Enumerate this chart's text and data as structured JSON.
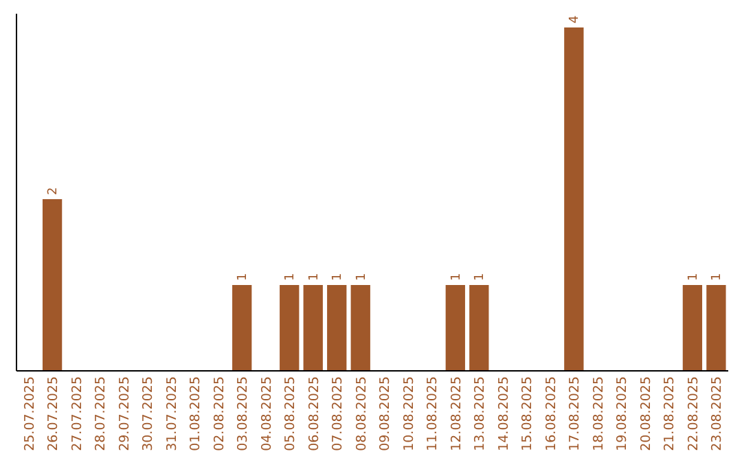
{
  "chart_data": {
    "type": "bar",
    "categories": [
      "25.07.2025",
      "26.07.2025",
      "27.07.2025",
      "28.07.2025",
      "29.07.2025",
      "30.07.2025",
      "31.07.2025",
      "01.08.2025",
      "02.08.2025",
      "03.08.2025",
      "04.08.2025",
      "05.08.2025",
      "06.08.2025",
      "07.08.2025",
      "08.08.2025",
      "09.08.2025",
      "10.08.2025",
      "11.08.2025",
      "12.08.2025",
      "13.08.2025",
      "14.08.2025",
      "15.08.2025",
      "16.08.2025",
      "17.08.2025",
      "18.08.2025",
      "19.08.2025",
      "20.08.2025",
      "21.08.2025",
      "22.08.2025",
      "23.08.2025"
    ],
    "values": [
      0,
      2,
      0,
      0,
      0,
      0,
      0,
      0,
      0,
      1,
      0,
      1,
      1,
      1,
      1,
      0,
      0,
      0,
      1,
      1,
      0,
      0,
      0,
      4,
      0,
      0,
      0,
      0,
      1,
      1
    ],
    "value_labels": [
      null,
      "2",
      null,
      null,
      null,
      null,
      null,
      null,
      null,
      "1",
      null,
      "1",
      "1",
      "1",
      "1",
      null,
      null,
      null,
      "1",
      "1",
      null,
      null,
      null,
      "4",
      null,
      null,
      null,
      null,
      "1",
      "1"
    ],
    "color": "#a0582a",
    "ylim": [
      0,
      4
    ],
    "tick_labels": "x"
  }
}
